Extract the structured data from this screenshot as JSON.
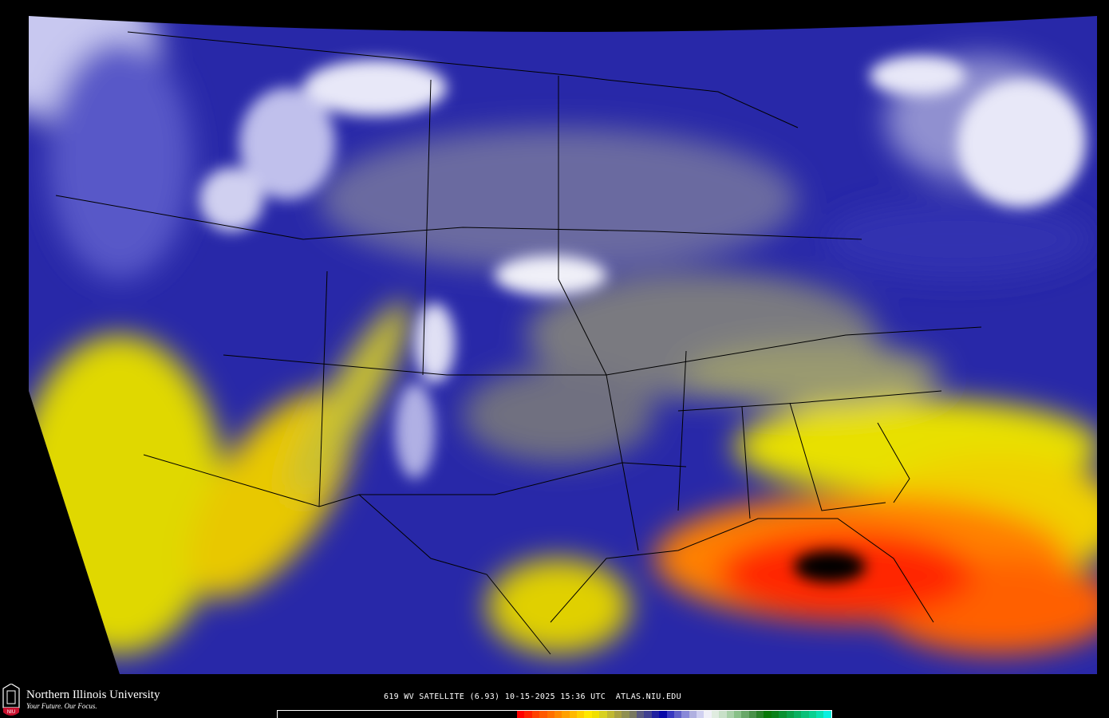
{
  "image": {
    "type": "GOES water vapor satellite image",
    "region": "Continental United States",
    "background_color": "#2828a8"
  },
  "footer": {
    "university_name": "Northern Illinois University",
    "tagline": "Your Future. Our Focus.",
    "logo_text": "NIU",
    "caption": "619 WV SATELLITE (6.93) 10-15-2025 15:36 UTC  ATLAS.NIU.EDU"
  },
  "colorbar": {
    "colors": [
      "#ff0000",
      "#ff2000",
      "#ff4000",
      "#ff5a00",
      "#ff7000",
      "#ff8800",
      "#ffa000",
      "#ffb800",
      "#ffd000",
      "#ffe800",
      "#f0e000",
      "#d8d020",
      "#c0b830",
      "#a8a040",
      "#909050",
      "#787860",
      "#585880",
      "#404090",
      "#2020a0",
      "#0808a8",
      "#3838c0",
      "#6060c8",
      "#8888d8",
      "#b0b0e0",
      "#d0d0f0",
      "#f0f0f8",
      "#e0ece0",
      "#c8e0c8",
      "#a8d0a8",
      "#88c088",
      "#68a868",
      "#489048",
      "#288028",
      "#087808",
      "#088018",
      "#089030",
      "#08a048",
      "#08b060",
      "#08c078",
      "#08d090",
      "#08e0b0",
      "#08f0e0"
    ]
  }
}
